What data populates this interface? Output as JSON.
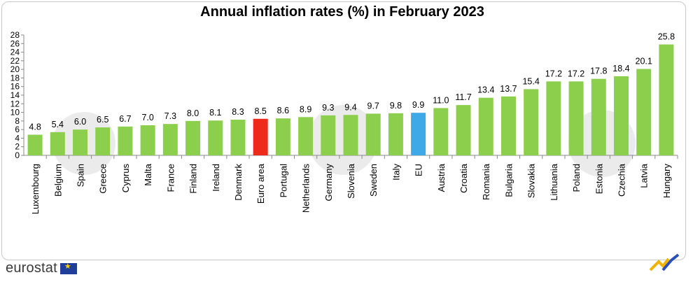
{
  "chart_data": {
    "type": "bar",
    "title": "Annual inflation rates (%) in February 2023",
    "categories": [
      "Luxembourg",
      "Belgium",
      "Spain",
      "Greece",
      "Cyprus",
      "Malta",
      "France",
      "Finland",
      "Ireland",
      "Denmark",
      "Euro area",
      "Portugal",
      "Netherlands",
      "Germany",
      "Slovenia",
      "Sweden",
      "Italy",
      "EU",
      "Austria",
      "Croatia",
      "Romania",
      "Bulgaria",
      "Slovakia",
      "Lithuania",
      "Poland",
      "Estonia",
      "Czechia",
      "Latvia",
      "Hungary"
    ],
    "values": [
      4.8,
      5.4,
      6.0,
      6.5,
      6.7,
      7.0,
      7.3,
      8.0,
      8.1,
      8.3,
      8.5,
      8.6,
      8.9,
      9.3,
      9.4,
      9.7,
      9.8,
      9.9,
      11.0,
      11.7,
      13.4,
      13.7,
      15.4,
      17.2,
      17.2,
      17.8,
      18.4,
      20.1,
      25.8
    ],
    "value_labels": [
      "4.8",
      "5.4",
      "6.0",
      "6.5",
      "6.7",
      "7.0",
      "7.3",
      "8.0",
      "8.1",
      "8.3",
      "8.5",
      "8.6",
      "8.9",
      "9.3",
      "9.4",
      "9.7",
      "9.8",
      "9.9",
      "11.0",
      "11.7",
      "13.4",
      "13.7",
      "15.4",
      "17.2",
      "17.2",
      "17.8",
      "18.4",
      "20.1",
      "25.8"
    ],
    "yticks": [
      "0",
      "2",
      "4",
      "6",
      "8",
      "10",
      "12",
      "14",
      "16",
      "18",
      "20",
      "22",
      "24",
      "26",
      "28"
    ],
    "ylim": [
      0,
      28
    ],
    "grid": false,
    "colors": {
      "default": "#8ccf4d",
      "highlight_euro_area": "#ee2a1b",
      "highlight_eu": "#3fa9e8"
    },
    "highlights": {
      "Euro area": "highlight_euro_area",
      "EU": "highlight_eu"
    }
  },
  "footer": {
    "logo_text": "eurostat"
  }
}
